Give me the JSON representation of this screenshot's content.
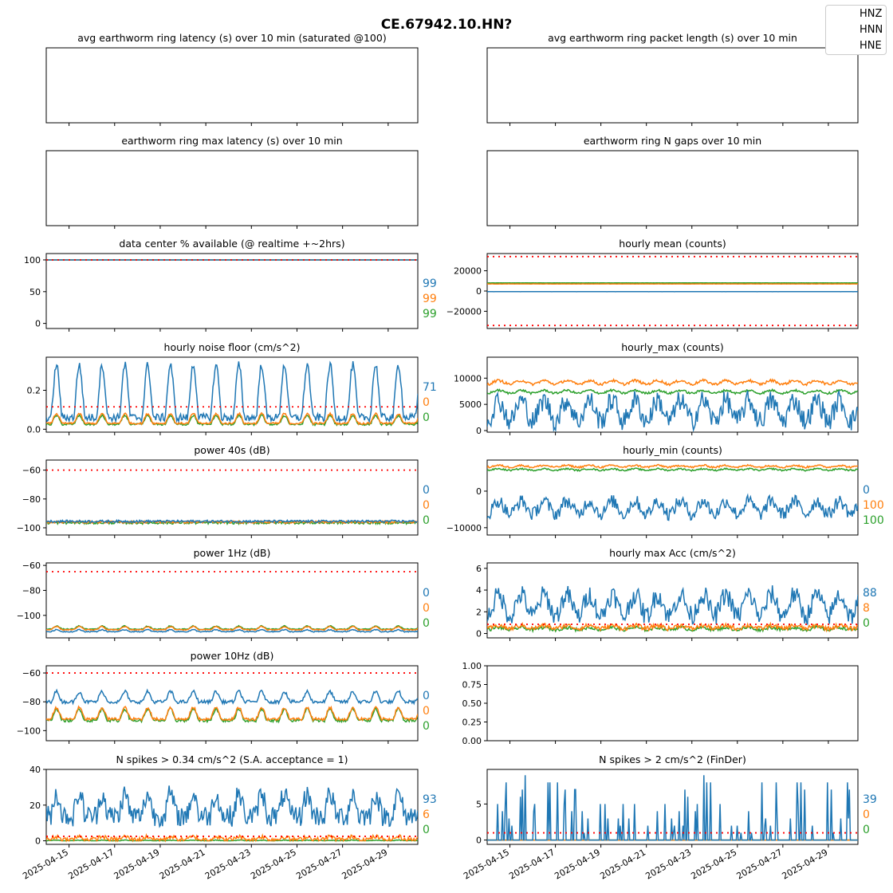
{
  "figure": {
    "title": "CE.67942.10.HN?",
    "legend": [
      "HNZ",
      "HNN",
      "HNE"
    ]
  },
  "colors": {
    "HNZ": "#1f77b4",
    "HNN": "#ff7f0e",
    "HNE": "#2ca02c",
    "threshold": "#ff0000"
  },
  "x_axis": {
    "ticks": [
      "2025-04-15",
      "2025-04-17",
      "2025-04-19",
      "2025-04-21",
      "2025-04-23",
      "2025-04-25",
      "2025-04-27",
      "2025-04-29"
    ],
    "start": "2025-04-14",
    "end": "2025-04-30"
  },
  "chart_data": [
    {
      "id": "p1",
      "type": "line",
      "title": "avg earthworm ring latency (s)   over 10 min (saturated @100)",
      "empty": true
    },
    {
      "id": "p2",
      "type": "line",
      "title": "avg earthworm ring packet length (s)   over 10 min",
      "empty": true
    },
    {
      "id": "p3",
      "type": "line",
      "title": "earthworm ring max latency (s)   over 10 min",
      "empty": true
    },
    {
      "id": "p4",
      "type": "line",
      "title": "earthworm ring N gaps   over 10 min",
      "empty": true
    },
    {
      "id": "p5",
      "type": "line",
      "title": "data center % available (@ realtime +~2hrs)",
      "ylim": [
        -8,
        110
      ],
      "yticks": [
        "0",
        "50",
        "100"
      ],
      "ytick_values": [
        0,
        50,
        100
      ],
      "thresholds": [
        100
      ],
      "labels": [
        "99",
        "99",
        "99"
      ],
      "series": [
        {
          "gen": "const",
          "levels": [
            100,
            100,
            100
          ],
          "amp": [
            0,
            0,
            0
          ]
        }
      ]
    },
    {
      "id": "p6",
      "type": "line",
      "title": "hourly mean (counts)",
      "ylim": [
        -37000,
        37000
      ],
      "yticks": [
        "−20000",
        "0",
        "20000"
      ],
      "ytick_values": [
        -20000,
        0,
        20000
      ],
      "thresholds": [
        34000,
        -34000
      ],
      "labels": [],
      "series": [
        {
          "gen": "const",
          "levels": [
            -600,
            7000,
            8000
          ],
          "amp": [
            150,
            150,
            150
          ]
        }
      ]
    },
    {
      "id": "p7",
      "type": "line",
      "title": "hourly noise floor (cm/s^2)",
      "ylim": [
        -0.015,
        0.37
      ],
      "yticks": [
        "0.0",
        "0.2"
      ],
      "ytick_values": [
        0,
        0.2
      ],
      "thresholds": [
        0.115
      ],
      "labels": [
        "71",
        "0",
        "0"
      ],
      "series": [
        {
          "gen": "diurnal",
          "base": [
            0.06,
            0.03,
            0.025
          ],
          "amp": [
            0.27,
            0.05,
            0.045
          ],
          "noise": [
            0.02,
            0.005,
            0.005
          ]
        }
      ]
    },
    {
      "id": "p8",
      "type": "line",
      "title": "hourly_max (counts)",
      "ylim": [
        -300,
        14000
      ],
      "yticks": [
        "0",
        "5000",
        "10000"
      ],
      "ytick_values": [
        0,
        5000,
        10000
      ],
      "thresholds": [],
      "labels": [],
      "series": [
        {
          "gen": "noisy",
          "base": [
            3800,
            9200,
            7400
          ],
          "amp": [
            2800,
            500,
            400
          ],
          "noise": [
            2000,
            250,
            200
          ]
        }
      ]
    },
    {
      "id": "p9",
      "type": "line",
      "title": "power 40s (dB)",
      "ylim": [
        -105,
        -53
      ],
      "yticks": [
        "−100",
        "−80",
        "−60"
      ],
      "ytick_values": [
        -100,
        -80,
        -60
      ],
      "thresholds": [
        -60
      ],
      "labels": [
        "0",
        "0",
        "0"
      ],
      "series": [
        {
          "gen": "flat",
          "base": [
            -95.5,
            -96,
            -96.5
          ],
          "noise": [
            0.8,
            0.8,
            0.9
          ]
        }
      ]
    },
    {
      "id": "p10",
      "type": "line",
      "title": "hourly_min (counts)",
      "ylim": [
        -12000,
        8500
      ],
      "yticks": [
        "−10000",
        "0"
      ],
      "ytick_values": [
        -10000,
        0
      ],
      "thresholds": [],
      "labels": [
        "0",
        "100",
        "100"
      ],
      "series": [
        {
          "gen": "noisy",
          "base": [
            -4500,
            6800,
            5900
          ],
          "amp": [
            2500,
            350,
            300
          ],
          "noise": [
            1800,
            250,
            200
          ]
        }
      ]
    },
    {
      "id": "p11",
      "type": "line",
      "title": "power 1Hz (dB)",
      "ylim": [
        -118,
        -58
      ],
      "yticks": [
        "−100",
        "−80",
        "−60"
      ],
      "ytick_values": [
        -100,
        -80,
        -60
      ],
      "thresholds": [
        -65
      ],
      "labels": [
        "0",
        "0",
        "0"
      ],
      "series": [
        {
          "gen": "diurnal",
          "base": [
            -113,
            -111.5,
            -111
          ],
          "amp": [
            1.5,
            2.5,
            2.5
          ],
          "noise": [
            0.4,
            0.4,
            0.4
          ]
        }
      ]
    },
    {
      "id": "p12",
      "type": "line",
      "title": "hourly max Acc (cm/s^2)",
      "ylim": [
        -0.4,
        6.5
      ],
      "yticks": [
        "0",
        "2",
        "4",
        "6"
      ],
      "ytick_values": [
        0,
        2,
        4,
        6
      ],
      "thresholds": [
        0.85
      ],
      "labels": [
        "88",
        "8",
        "0"
      ],
      "series": [
        {
          "gen": "noisy",
          "base": [
            2.6,
            0.6,
            0.45
          ],
          "amp": [
            1.4,
            0.2,
            0.15
          ],
          "noise": [
            0.9,
            0.2,
            0.15
          ]
        }
      ]
    },
    {
      "id": "p13",
      "type": "line",
      "title": "power 10Hz (dB)",
      "ylim": [
        -107,
        -55
      ],
      "yticks": [
        "−100",
        "−80",
        "−60"
      ],
      "ytick_values": [
        -100,
        -80,
        -60
      ],
      "thresholds": [
        -60
      ],
      "labels": [
        "0",
        "0",
        "0"
      ],
      "series": [
        {
          "gen": "diurnal",
          "base": [
            -80,
            -92,
            -93
          ],
          "amp": [
            7,
            8,
            8
          ],
          "noise": [
            1.2,
            1,
            1
          ]
        }
      ]
    },
    {
      "id": "p14",
      "type": "line",
      "title": "",
      "empty": true,
      "ylim": [
        0,
        1
      ],
      "yticks": [
        "0.00",
        "0.25",
        "0.50",
        "0.75",
        "1.00"
      ],
      "ytick_values": [
        0,
        0.25,
        0.5,
        0.75,
        1
      ]
    },
    {
      "id": "p15",
      "type": "line",
      "title": "N spikes > 0.34 cm/s^2 (S.A. acceptance = 1)",
      "ylim": [
        -2,
        40
      ],
      "yticks": [
        "0",
        "20",
        "40"
      ],
      "ytick_values": [
        0,
        20,
        40
      ],
      "thresholds": [
        2.5
      ],
      "labels": [
        "93",
        "6",
        "0"
      ],
      "series": [
        {
          "gen": "spiky",
          "base": [
            14,
            0.8,
            0.05
          ],
          "amp": [
            12,
            1.5,
            0.3
          ],
          "noise": [
            6,
            1.2,
            0.2
          ]
        }
      ]
    },
    {
      "id": "p16",
      "type": "line",
      "title": "N spikes > 2 cm/s^2 (FinDer)",
      "ylim": [
        -0.6,
        9.8
      ],
      "yticks": [
        "0",
        "5"
      ],
      "ytick_values": [
        0,
        5
      ],
      "thresholds": [
        1
      ],
      "labels": [
        "39",
        "0",
        "0"
      ],
      "series": [
        {
          "gen": "sparse",
          "base": [
            0,
            0,
            0
          ],
          "amp": [
            9,
            0,
            0
          ],
          "noise": [
            0,
            0,
            0
          ]
        }
      ]
    }
  ]
}
